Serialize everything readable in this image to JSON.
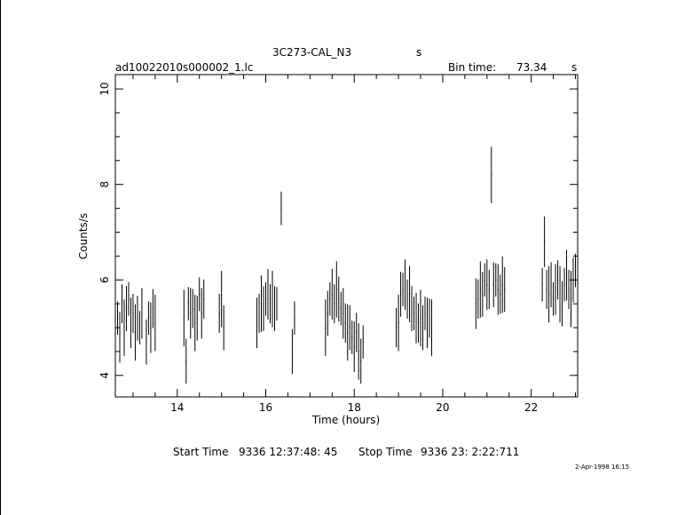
{
  "header": {
    "object_name": "3C273-CAL_N3",
    "unit_suffix": "s",
    "file_name": "ad10022010s000002_1.lc",
    "bin_label": "Bin time:",
    "bin_value": "73.34",
    "bin_unit": "s"
  },
  "footer": {
    "start_label": "Start Time",
    "start_value": "9336 12:37:48: 45",
    "stop_label": "Stop Time",
    "stop_value": "9336 23: 2:22:711",
    "plot_date": "2-Apr-1998 16:15"
  },
  "chart_data": {
    "type": "scatter",
    "xlabel": "Time (hours)",
    "ylabel": "Counts/s",
    "xlim": [
      12.6,
      23.05
    ],
    "ylim": [
      3.55,
      10.3
    ],
    "x_ticks": [
      14,
      16,
      18,
      20,
      22
    ],
    "y_ticks": [
      4,
      6,
      8,
      10
    ],
    "grid": false,
    "error_bars": true,
    "segments": [
      {
        "x": [
          12.65,
          12.7,
          12.75,
          12.8,
          12.85,
          12.9,
          12.95,
          13.0,
          13.05,
          13.1,
          13.15,
          13.2
        ],
        "y": [
          5.2,
          4.8,
          5.5,
          5.0,
          5.4,
          5.6,
          5.1,
          5.3,
          4.9,
          5.2,
          5.0,
          5.3
        ]
      },
      {
        "x": [
          13.3,
          13.35,
          13.4,
          13.45,
          13.5
        ],
        "y": [
          4.7,
          5.2,
          5.0,
          5.4,
          5.1
        ]
      },
      {
        "x": [
          14.15,
          14.2,
          14.25,
          14.3,
          14.35,
          14.4,
          14.45,
          14.5,
          14.55,
          14.6
        ],
        "y": [
          5.2,
          4.3,
          5.5,
          5.3,
          5.4,
          5.1,
          5.2,
          5.7,
          5.3,
          5.6
        ]
      },
      {
        "x": [
          14.95,
          15.0,
          15.05
        ],
        "y": [
          5.3,
          5.6,
          5.0
        ]
      },
      {
        "x": [
          15.8,
          15.85,
          15.9,
          15.95,
          16.0,
          16.05,
          16.1,
          16.15,
          16.2,
          16.25
        ],
        "y": [
          5.1,
          5.3,
          5.5,
          5.4,
          5.6,
          5.7,
          5.5,
          5.6,
          5.4,
          5.5
        ]
      },
      {
        "x": [
          16.35
        ],
        "y": [
          7.5
        ]
      },
      {
        "x": [
          16.6,
          16.65
        ],
        "y": [
          4.5,
          5.2
        ]
      },
      {
        "x": [
          17.35,
          17.4,
          17.45,
          17.5,
          17.55,
          17.6,
          17.65,
          17.7,
          17.75,
          17.8,
          17.85,
          17.9,
          17.95,
          18.0,
          18.05,
          18.1,
          18.15,
          18.2
        ],
        "y": [
          5.0,
          5.3,
          5.6,
          5.7,
          5.5,
          5.8,
          5.6,
          5.4,
          5.3,
          5.1,
          4.9,
          5.0,
          4.8,
          4.6,
          4.9,
          4.5,
          4.3,
          4.7
        ]
      },
      {
        "x": [
          18.95,
          19.0,
          19.05,
          19.1,
          19.15,
          19.2,
          19.25,
          19.3,
          19.35,
          19.4,
          19.45,
          19.5,
          19.55,
          19.6,
          19.65,
          19.7,
          19.75
        ],
        "y": [
          5.0,
          5.1,
          5.7,
          5.8,
          5.9,
          5.6,
          5.7,
          5.4,
          5.3,
          5.2,
          5.1,
          5.2,
          5.0,
          5.3,
          5.1,
          5.2,
          5.0
        ]
      },
      {
        "x": [
          20.75,
          20.8,
          20.85,
          20.9,
          20.95,
          21.0,
          21.05,
          21.1,
          21.15,
          21.2,
          21.25,
          21.3,
          21.35,
          21.4
        ],
        "y": [
          5.5,
          5.6,
          5.8,
          5.7,
          6.0,
          5.9,
          5.8,
          8.2,
          5.9,
          6.0,
          5.8,
          5.7,
          5.9,
          5.8
        ]
      },
      {
        "x": [
          22.25,
          22.3,
          22.35,
          22.4,
          22.45,
          22.5,
          22.55,
          22.6,
          22.65,
          22.7,
          22.75,
          22.8,
          22.85,
          22.9,
          22.95,
          23.0
        ],
        "y": [
          5.9,
          6.8,
          5.8,
          5.7,
          5.9,
          5.6,
          5.8,
          6.0,
          5.7,
          5.5,
          5.9,
          6.1,
          5.8,
          5.6,
          6.0,
          6.2
        ]
      }
    ]
  }
}
